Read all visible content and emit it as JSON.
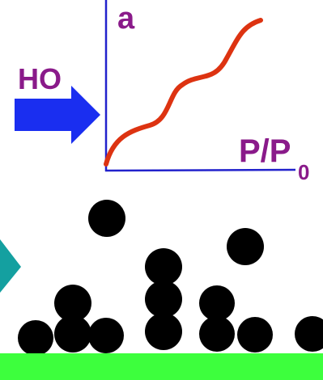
{
  "labels": {
    "axis_y": "a",
    "axis_x_main": "P/P",
    "axis_x_sub": "0",
    "arrow_label": "HO"
  },
  "colors": {
    "axis": "#2222cc",
    "curve": "#dd3311",
    "label_purple": "#8a1a8a",
    "arrow_blue": "#1a2ef0",
    "teal_marker": "#14a0a0",
    "particles": "#000000",
    "surface": "#3dff3d"
  },
  "icons": {
    "arrow": "right-arrow-icon",
    "marker": "teal-triangle-icon"
  },
  "adsorption": {
    "particle_count": 14,
    "surface": "substrate"
  }
}
